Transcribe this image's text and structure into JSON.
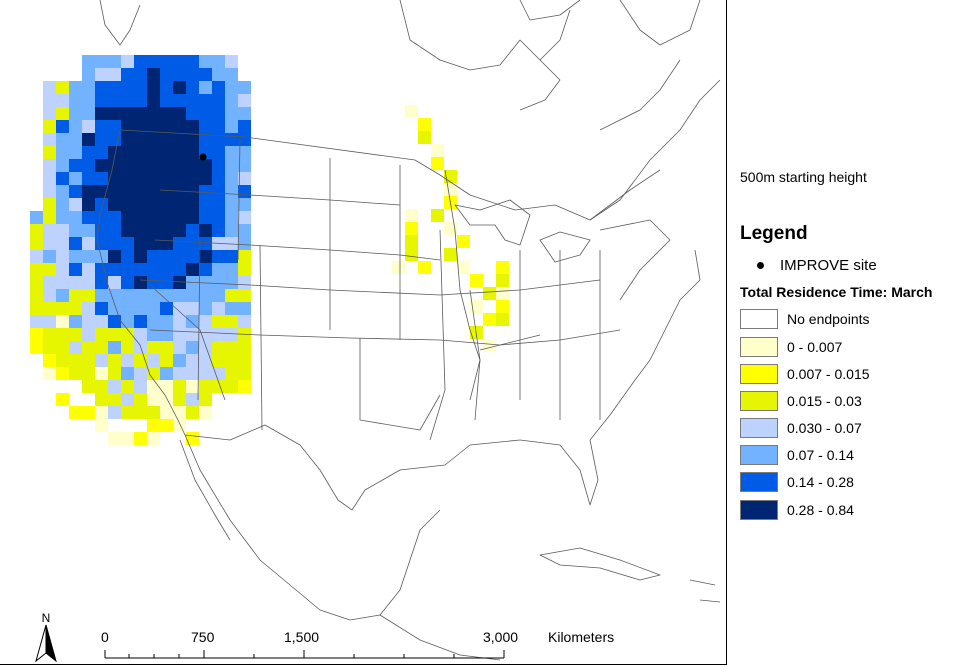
{
  "map": {
    "height_label": "500m starting height",
    "legend_title": "Legend",
    "site_label": "IMPROVE site",
    "legend_subtitle": "Total Residence Time: March",
    "classes": [
      {
        "label": "No endpoints",
        "color": "#ffffff"
      },
      {
        "label": "0 - 0.007",
        "color": "#ffffcc"
      },
      {
        "label": "0.007 - 0.015",
        "color": "#ffff00"
      },
      {
        "label": "0.015 - 0.03",
        "color": "#e6f500"
      },
      {
        "label": "0.030 - 0.07",
        "color": "#bed2ff"
      },
      {
        "label": "0.07 - 0.14",
        "color": "#73b2ff"
      },
      {
        "label": "0.14 - 0.28",
        "color": "#005ce6"
      },
      {
        "label": "0.28 - 0.84",
        "color": "#002673"
      }
    ],
    "scale": {
      "ticks": [
        "0",
        "750",
        "1,500",
        "3,000"
      ],
      "unit": "Kilometers"
    },
    "north_label": "N"
  }
}
